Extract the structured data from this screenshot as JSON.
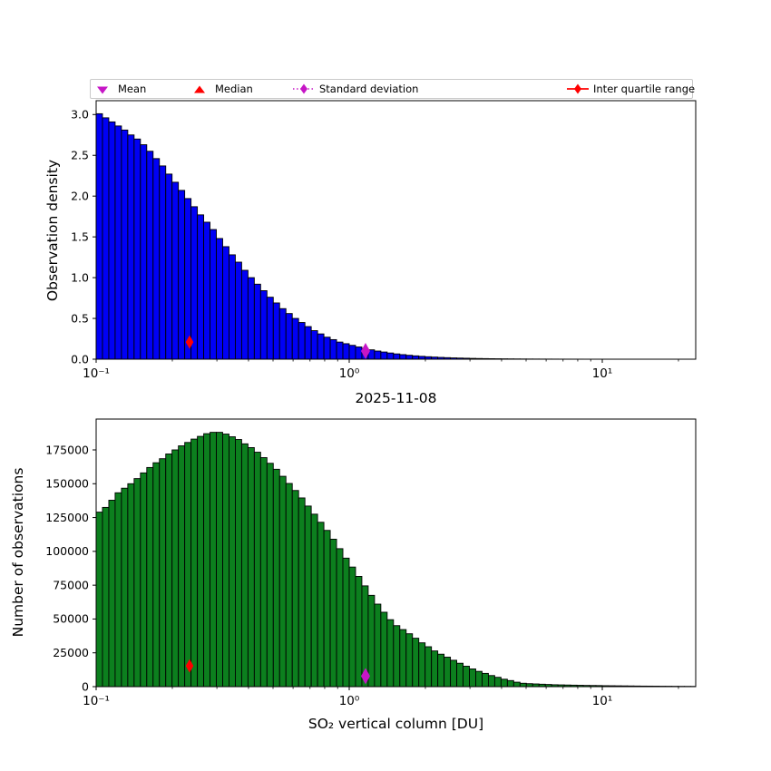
{
  "colors": {
    "hist_top": "#0000F5",
    "hist_bottom": "#0C7F1E",
    "bar_edge": "#000000",
    "red": "#FF0000",
    "magenta": "#C616C6",
    "legend_frame": "#c9c9c9"
  },
  "legend": {
    "items": [
      {
        "label": "Mean",
        "marker": "triangle-down",
        "color": "#C616C6",
        "line": "none"
      },
      {
        "label": "Median",
        "marker": "triangle-up",
        "color": "#FF0000",
        "line": "none"
      },
      {
        "label": "Standard deviation",
        "marker": "thin-diamond",
        "color": "#C616C6",
        "line": "dotted"
      },
      {
        "label": "Inter quartile range",
        "marker": "thin-diamond",
        "color": "#FF0000",
        "line": "solid"
      }
    ]
  },
  "between_title": "2025-11-08",
  "chart_data": [
    {
      "type": "bar",
      "name": "observation-density-histogram",
      "ylabel": "Observation density",
      "xlabel": "2025-11-08",
      "xscale": "log",
      "xlim": [
        0.1,
        23.4
      ],
      "ylim": [
        0,
        3.17
      ],
      "bins_per_decade": 40,
      "bin_start": 0.1,
      "bar_color": "#0000F5",
      "xticks": [
        {
          "value": 0.1,
          "label": "10⁻¹"
        },
        {
          "value": 1,
          "label": "10⁰"
        },
        {
          "value": 10,
          "label": "10¹"
        }
      ],
      "yticks": [
        {
          "value": 0.0,
          "label": "0.0"
        },
        {
          "value": 0.5,
          "label": "0.5"
        },
        {
          "value": 1.0,
          "label": "1.0"
        },
        {
          "value": 1.5,
          "label": "1.5"
        },
        {
          "value": 2.0,
          "label": "2.0"
        },
        {
          "value": 2.5,
          "label": "2.5"
        },
        {
          "value": 3.0,
          "label": "3.0"
        }
      ],
      "values": [
        3.01,
        2.96,
        2.91,
        2.86,
        2.81,
        2.75,
        2.7,
        2.63,
        2.55,
        2.46,
        2.37,
        2.27,
        2.17,
        2.07,
        1.97,
        1.87,
        1.77,
        1.68,
        1.59,
        1.48,
        1.38,
        1.28,
        1.19,
        1.09,
        1.0,
        0.92,
        0.84,
        0.76,
        0.69,
        0.62,
        0.56,
        0.5,
        0.45,
        0.4,
        0.35,
        0.31,
        0.27,
        0.24,
        0.21,
        0.19,
        0.17,
        0.15,
        0.13,
        0.115,
        0.1,
        0.088,
        0.076,
        0.065,
        0.056,
        0.048,
        0.041,
        0.035,
        0.03,
        0.026,
        0.022,
        0.019,
        0.016,
        0.014,
        0.012,
        0.01,
        0.0085,
        0.0072,
        0.0061,
        0.0052,
        0.0044,
        0.0037,
        0.0031,
        0.0026,
        0.0022,
        0.0019,
        0.0016,
        0.0014,
        0.0012,
        0.001,
        0.0009,
        0.0008,
        0.0007,
        0.0006,
        0.00055,
        0.0005,
        0.00045,
        0.0004,
        0.00035,
        0.0003,
        0.00028,
        0.00025,
        0.00022,
        0.0002,
        0.00018,
        0.00016,
        0.00014,
        0.00012,
        0.0001,
        8e-05,
        6e-05
      ],
      "markers": [
        {
          "name": "median-iqr-marker",
          "x": 0.234,
          "y": 0.21,
          "color": "#FF0000",
          "hw": 4.3,
          "hh": 7.5
        },
        {
          "name": "mean-std-marker",
          "x": 1.16,
          "y": 0.1,
          "color": "#C616C6",
          "hw": 5,
          "hh": 9
        }
      ]
    },
    {
      "type": "bar",
      "name": "number-of-observations-histogram",
      "ylabel": "Number of observations",
      "xlabel": "SO₂ vertical column [DU]",
      "xscale": "log",
      "xlim": [
        0.1,
        23.4
      ],
      "ylim": [
        0,
        197800
      ],
      "bins_per_decade": 40,
      "bin_start": 0.1,
      "bar_color": "#0C7F1E",
      "xticks": [
        {
          "value": 0.1,
          "label": "10⁻¹"
        },
        {
          "value": 1,
          "label": "10⁰"
        },
        {
          "value": 10,
          "label": "10¹"
        }
      ],
      "yticks": [
        {
          "value": 0,
          "label": "0"
        },
        {
          "value": 25000,
          "label": "25000"
        },
        {
          "value": 50000,
          "label": "50000"
        },
        {
          "value": 75000,
          "label": "75000"
        },
        {
          "value": 100000,
          "label": "100000"
        },
        {
          "value": 125000,
          "label": "125000"
        },
        {
          "value": 150000,
          "label": "150000"
        },
        {
          "value": 175000,
          "label": "175000"
        }
      ],
      "values": [
        129000,
        132500,
        137800,
        143300,
        146700,
        150000,
        153800,
        158000,
        162000,
        165500,
        168500,
        172000,
        175000,
        178000,
        180500,
        183000,
        185000,
        187000,
        188000,
        188000,
        186700,
        184700,
        182700,
        179500,
        176700,
        173300,
        169300,
        165100,
        160700,
        155500,
        150200,
        145000,
        139500,
        133500,
        127500,
        121500,
        115500,
        109000,
        102000,
        95000,
        88400,
        81500,
        74500,
        67500,
        61000,
        55000,
        49500,
        45100,
        42200,
        39100,
        35800,
        32400,
        29500,
        26400,
        24000,
        21800,
        19500,
        17300,
        15100,
        13100,
        11300,
        9800,
        8200,
        6900,
        5500,
        4500,
        3300,
        2500,
        2200,
        2000,
        1800,
        1600,
        1400,
        1300,
        1200,
        1100,
        1000,
        900,
        850,
        800,
        700,
        650,
        600,
        550,
        500,
        450,
        400,
        380,
        350,
        300,
        280,
        250,
        220,
        200,
        180
      ],
      "markers": [
        {
          "name": "median-iqr-marker",
          "x": 0.234,
          "y": 15300,
          "color": "#FF0000",
          "hw": 4.3,
          "hh": 7.5
        },
        {
          "name": "mean-std-marker",
          "x": 1.16,
          "y": 7800,
          "color": "#C616C6",
          "hw": 5,
          "hh": 9
        }
      ]
    }
  ]
}
